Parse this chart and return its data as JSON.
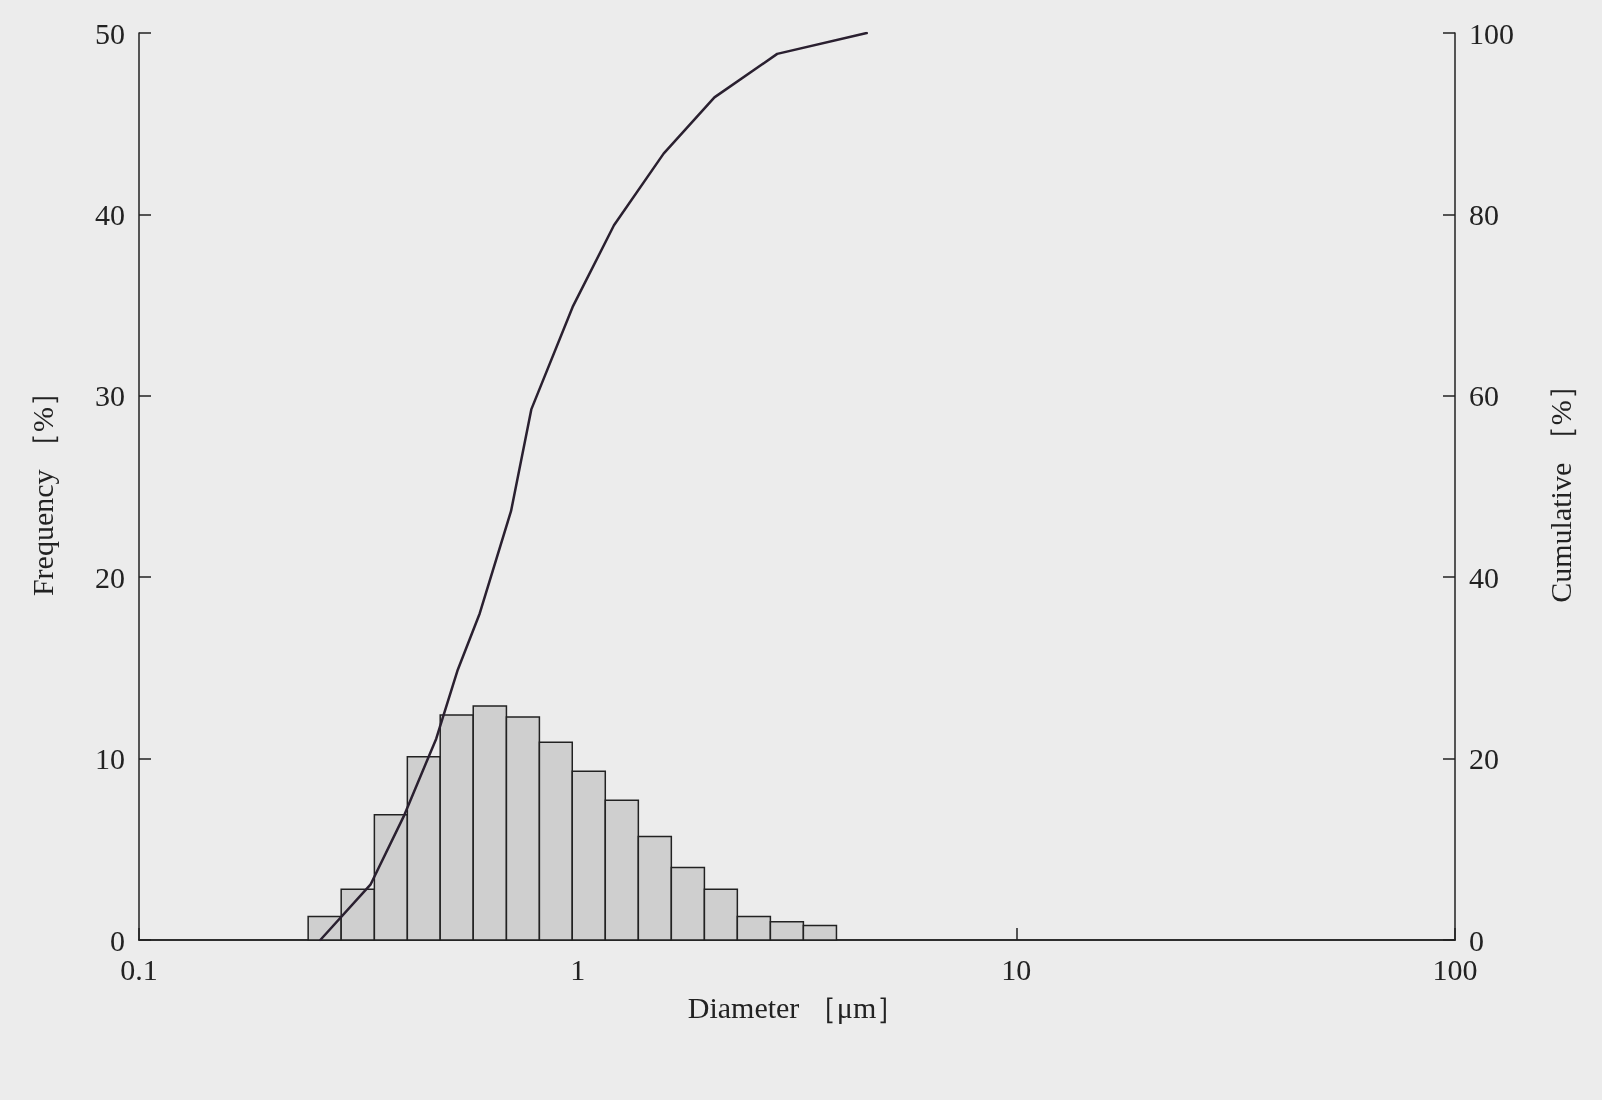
{
  "chart_data": {
    "type": "histogram",
    "xlabel": "Diameter ［μm］",
    "ylabel": "Frequency ［%］",
    "y2label": "Cumulative ［%］",
    "bins": [
      0.243,
      0.289,
      0.344,
      0.409,
      0.486,
      0.578,
      0.688,
      0.818,
      0.972,
      1.156,
      1.375,
      1.635,
      1.945,
      2.312,
      2.75,
      3.27,
      3.89
    ],
    "values": [
      1.3,
      2.8,
      6.9,
      10.1,
      12.4,
      12.9,
      12.3,
      10.9,
      9.3,
      7.7,
      5.7,
      4.0,
      2.8,
      1.3,
      1.0,
      0.8
    ],
    "color": "#cfcfcf",
    "series": [
      {
        "type": "line",
        "axis": "y2",
        "color": "#2a2030",
        "x": [
          0.259,
          0.337,
          0.401,
          0.476,
          0.533,
          0.598,
          0.705,
          0.784,
          0.974,
          1.21,
          1.57,
          2.05,
          2.85,
          4.56
        ],
        "values": [
          0,
          6.1,
          13.6,
          22.2,
          29.8,
          36.0,
          47.3,
          58.5,
          69.8,
          78.8,
          86.7,
          92.9,
          97.7,
          100
        ]
      }
    ],
    "log": "x",
    "xlim": [
      0.1,
      100
    ],
    "xticks": [
      0.1,
      1,
      10,
      100
    ],
    "ylim": [
      0,
      50
    ],
    "yticks": [
      0,
      10,
      20,
      30,
      40,
      50
    ],
    "y2lim": [
      0,
      100
    ],
    "y2ticks": [
      0,
      20,
      40,
      60,
      80,
      100
    ],
    "grid": false,
    "marker": "none",
    "line_style": "solid"
  }
}
